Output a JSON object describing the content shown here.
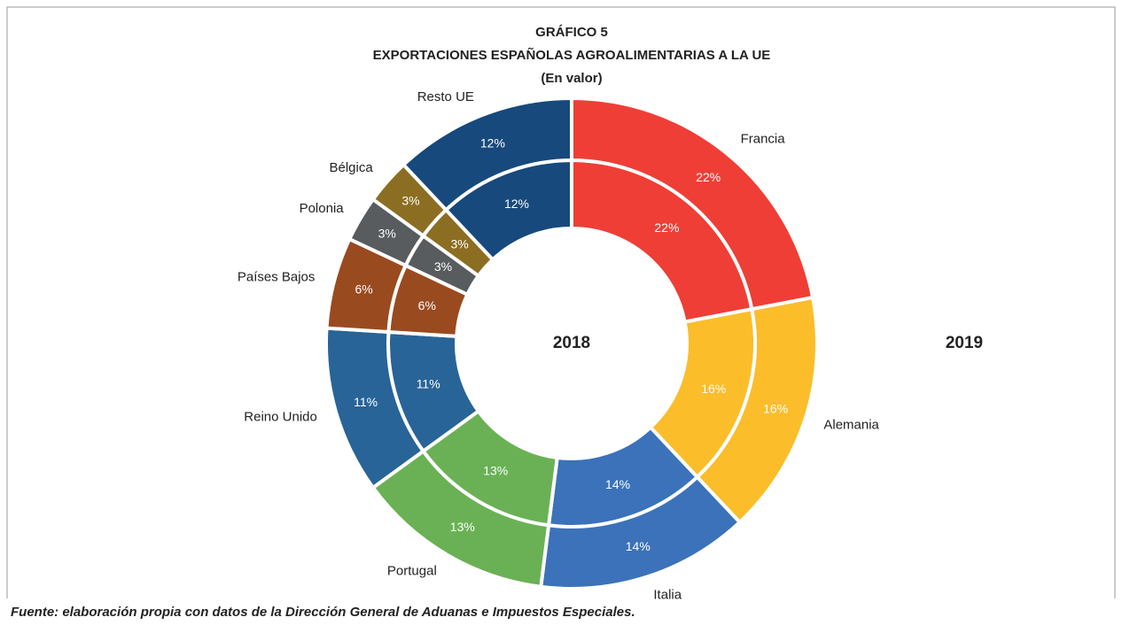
{
  "chart_data": {
    "type": "donut",
    "title": "GRÁFICO 5",
    "subtitle": "EXPORTACIONES ESPAÑOLAS AGROALIMENTARIAS A LA UE",
    "note": "(En valor)",
    "source": "Fuente: elaboración propia con datos de la Dirección General de Aduanas e Impuestos Especiales.",
    "categories": [
      "Francia",
      "Alemania",
      "Italia",
      "Portugal",
      "Reino Unido",
      "Países Bajos",
      "Polonia",
      "Bélgica",
      "Resto UE"
    ],
    "colors": [
      "#ef3e36",
      "#fbbd2a",
      "#3b72b9",
      "#6ab155",
      "#286498",
      "#9a4a1f",
      "#595c5e",
      "#8c6e22",
      "#17497c"
    ],
    "series": [
      {
        "name": "2018",
        "values": [
          22,
          16,
          14,
          13,
          11,
          6,
          3,
          3,
          12
        ],
        "value_labels": [
          "22%",
          "16%",
          "14%",
          "13%",
          "11%",
          "6%",
          "3%",
          "3%",
          "12%"
        ]
      },
      {
        "name": "2019",
        "values": [
          22,
          16,
          14,
          13,
          11,
          6,
          3,
          3,
          12
        ],
        "value_labels": [
          "22%",
          "16%",
          "14%",
          "13%",
          "11%",
          "6%",
          "3%",
          "3%",
          "12%"
        ]
      }
    ]
  }
}
